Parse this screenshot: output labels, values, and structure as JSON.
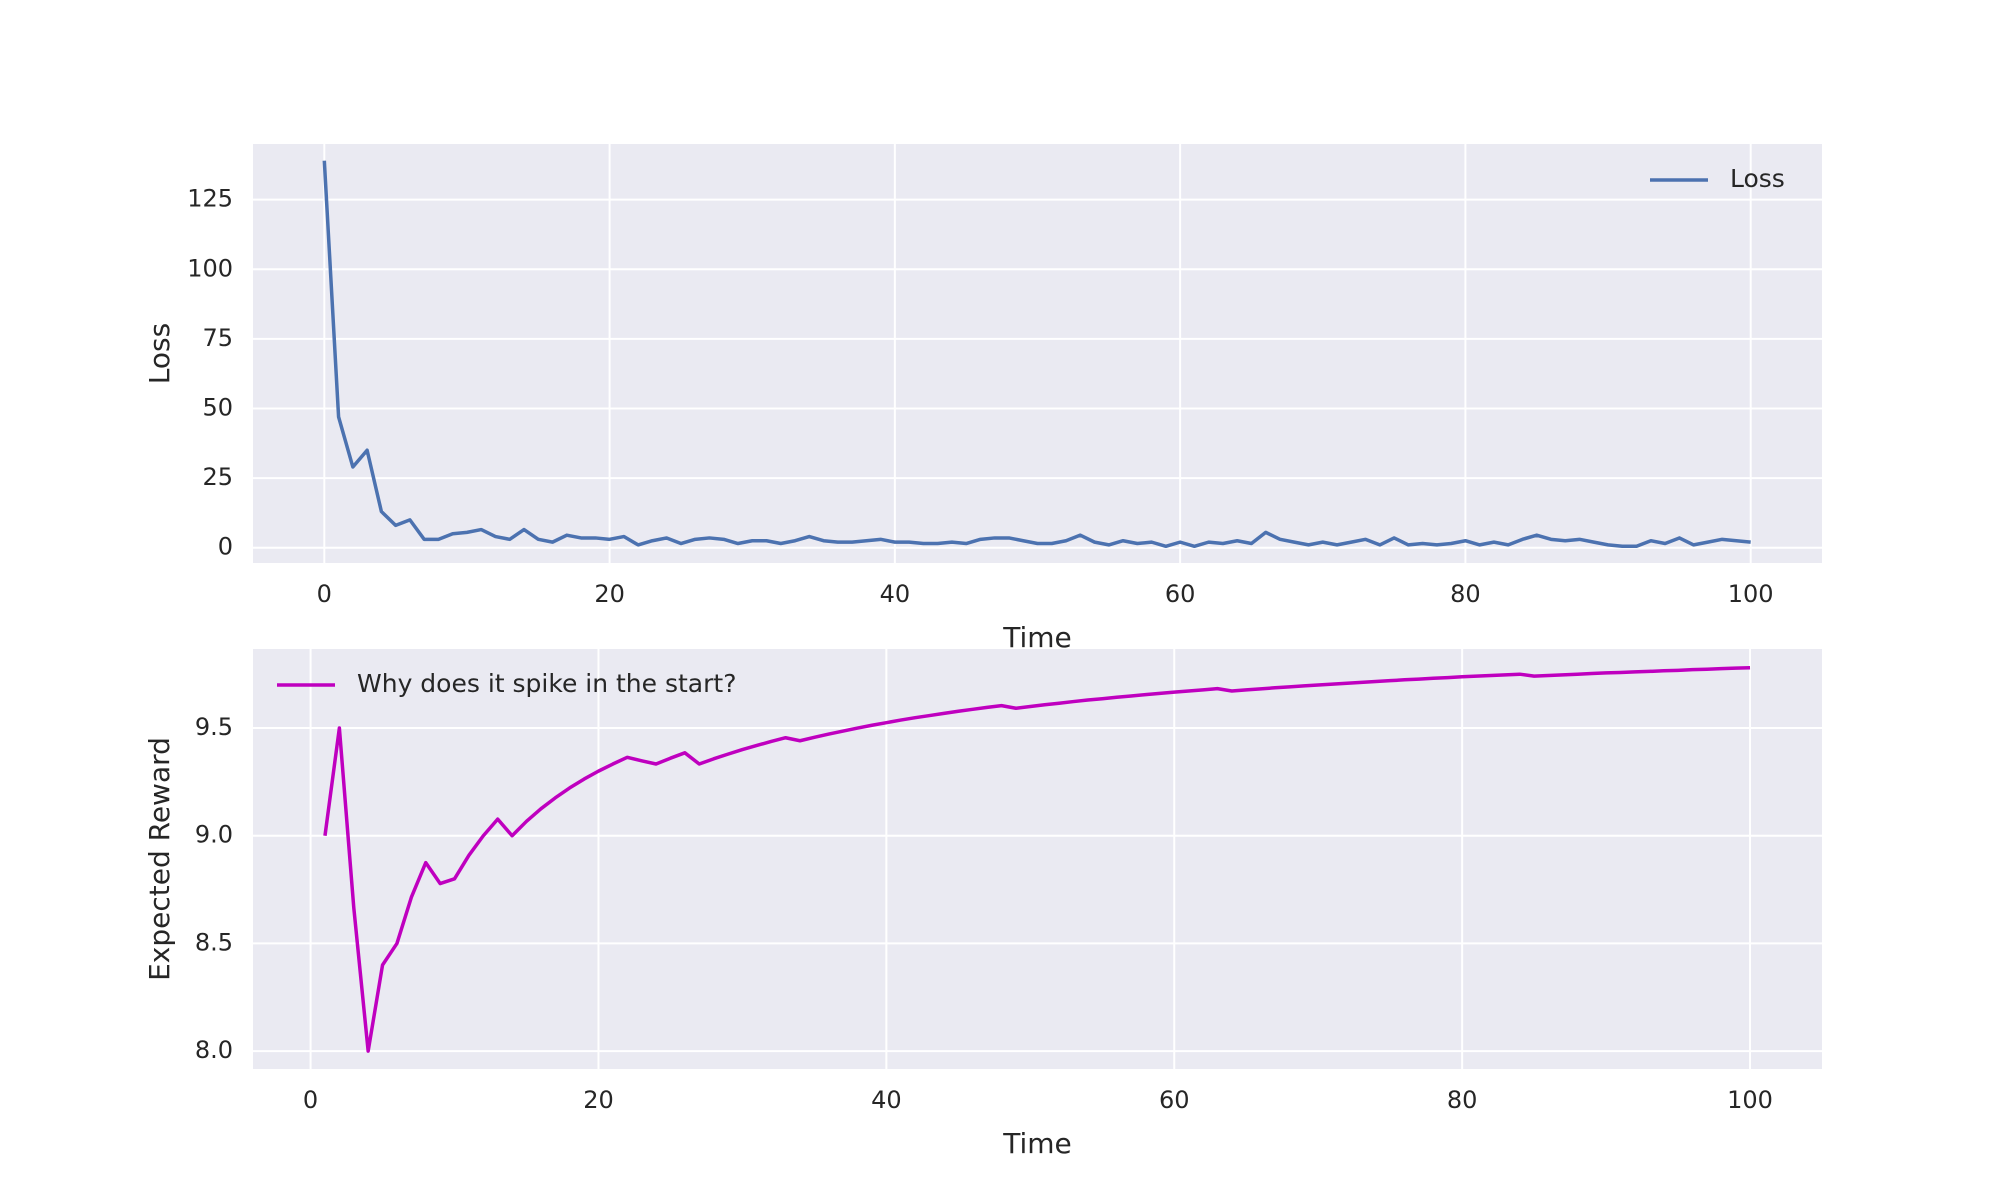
{
  "chart_data": [
    {
      "type": "line",
      "xlabel": "Time",
      "ylabel": "Loss",
      "x": [
        0,
        1,
        2,
        3,
        4,
        5,
        6,
        7,
        8,
        9,
        10,
        11,
        12,
        13,
        14,
        15,
        16,
        17,
        18,
        19,
        20,
        21,
        22,
        23,
        24,
        25,
        26,
        27,
        28,
        29,
        30,
        31,
        32,
        33,
        34,
        35,
        36,
        37,
        38,
        39,
        40,
        41,
        42,
        43,
        44,
        45,
        46,
        47,
        48,
        49,
        50,
        51,
        52,
        53,
        54,
        55,
        56,
        57,
        58,
        59,
        60,
        61,
        62,
        63,
        64,
        65,
        66,
        67,
        68,
        69,
        70,
        71,
        72,
        73,
        74,
        75,
        76,
        77,
        78,
        79,
        80,
        81,
        82,
        83,
        84,
        85,
        86,
        87,
        88,
        89,
        90,
        91,
        92,
        93,
        94,
        95,
        96,
        97,
        98,
        99,
        100
      ],
      "series": [
        {
          "name": "Loss",
          "color": "#4c72b0",
          "values": [
            139,
            47,
            29,
            35,
            13,
            8,
            10,
            3,
            3,
            5,
            5.5,
            6.5,
            4,
            3,
            6.5,
            3,
            2,
            4.5,
            3.5,
            3.5,
            3,
            4,
            1,
            2.5,
            3.5,
            1.5,
            3,
            3.5,
            3,
            1.5,
            2.5,
            2.5,
            1.5,
            2.5,
            4,
            2.5,
            2,
            2,
            2.5,
            3,
            2,
            2,
            1.5,
            1.5,
            2,
            1.5,
            3,
            3.5,
            3.5,
            2.5,
            1.5,
            1.5,
            2.5,
            4.5,
            2,
            1,
            2.5,
            1.5,
            2,
            0.5,
            2,
            0.5,
            2,
            1.5,
            2.5,
            1.5,
            5.5,
            3,
            2,
            1,
            2,
            1,
            2,
            3,
            1,
            3.5,
            1,
            1.5,
            1,
            1.5,
            2.5,
            1,
            2,
            1,
            3,
            4.5,
            3,
            2.5,
            3,
            2,
            1,
            0.5,
            0.5,
            2.5,
            1.5,
            3.5,
            1,
            2,
            3,
            2.5,
            2
          ]
        }
      ],
      "xlim": [
        -5,
        105
      ],
      "ylim": [
        -5.5,
        145
      ],
      "xticks": [
        0,
        20,
        40,
        60,
        80,
        100
      ],
      "yticks": [
        0,
        25,
        50,
        75,
        100,
        125
      ],
      "grid": true,
      "legend": "upper right"
    },
    {
      "type": "line",
      "xlabel": "Time",
      "ylabel": "Expected Reward",
      "x": [
        1,
        2,
        3,
        4,
        5,
        6,
        7,
        8,
        9,
        10,
        11,
        12,
        13,
        14,
        15,
        16,
        17,
        18,
        19,
        20,
        21,
        22,
        23,
        24,
        25,
        26,
        27,
        28,
        29,
        30,
        31,
        32,
        33,
        34,
        35,
        36,
        37,
        38,
        39,
        40,
        41,
        42,
        43,
        44,
        45,
        46,
        47,
        48,
        49,
        50,
        51,
        52,
        53,
        54,
        55,
        56,
        57,
        58,
        59,
        60,
        61,
        62,
        63,
        64,
        65,
        66,
        67,
        68,
        69,
        70,
        71,
        72,
        73,
        74,
        75,
        76,
        77,
        78,
        79,
        80,
        81,
        82,
        83,
        84,
        85,
        86,
        87,
        88,
        89,
        90,
        91,
        92,
        93,
        94,
        95,
        96,
        97,
        98,
        99,
        100
      ],
      "series": [
        {
          "name": "Why does it spike in the start?",
          "color": "#bf00bf",
          "values": [
            9.0,
            9.5,
            8.667,
            8.0,
            8.4,
            8.5,
            8.714,
            8.875,
            8.778,
            8.8,
            8.909,
            9.0,
            9.077,
            9.0,
            9.067,
            9.125,
            9.176,
            9.222,
            9.263,
            9.3,
            9.333,
            9.364,
            9.348,
            9.333,
            9.36,
            9.385,
            9.333,
            9.357,
            9.379,
            9.4,
            9.419,
            9.438,
            9.455,
            9.441,
            9.457,
            9.472,
            9.486,
            9.5,
            9.513,
            9.525,
            9.537,
            9.548,
            9.558,
            9.568,
            9.578,
            9.587,
            9.596,
            9.604,
            9.592,
            9.6,
            9.608,
            9.615,
            9.623,
            9.63,
            9.636,
            9.643,
            9.649,
            9.655,
            9.661,
            9.667,
            9.672,
            9.677,
            9.683,
            9.672,
            9.677,
            9.682,
            9.687,
            9.691,
            9.696,
            9.7,
            9.704,
            9.708,
            9.712,
            9.716,
            9.72,
            9.724,
            9.727,
            9.731,
            9.734,
            9.738,
            9.741,
            9.744,
            9.747,
            9.75,
            9.741,
            9.744,
            9.747,
            9.75,
            9.753,
            9.756,
            9.758,
            9.761,
            9.763,
            9.766,
            9.768,
            9.771,
            9.773,
            9.776,
            9.778,
            9.78
          ]
        }
      ],
      "xlim": [
        -4,
        105
      ],
      "ylim": [
        7.917,
        9.867
      ],
      "xticks": [
        0,
        20,
        40,
        60,
        80,
        100
      ],
      "yticks": [
        {
          "value": 8,
          "label": "8.0"
        },
        {
          "value": 8.5,
          "label": "8.5"
        },
        {
          "value": 9,
          "label": "9.0"
        },
        {
          "value": 9.5,
          "label": "9.5"
        }
      ],
      "grid": true,
      "legend": "upper left"
    }
  ]
}
